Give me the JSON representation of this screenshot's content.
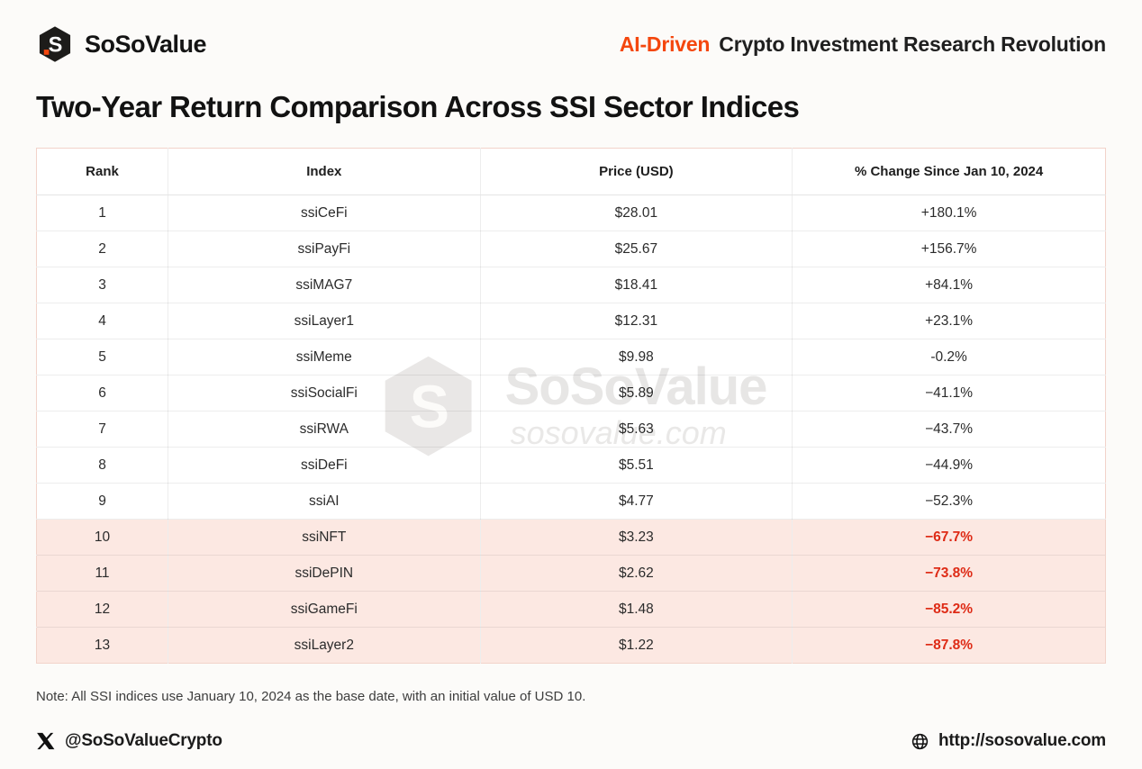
{
  "brand": {
    "name": "SoSoValue",
    "tagline_accent": "AI-Driven",
    "tagline_rest": "Crypto Investment Research Revolution"
  },
  "page_title": "Two-Year Return Comparison Across SSI Sector Indices",
  "table": {
    "columns": [
      "Rank",
      "Index",
      "Price (USD)",
      "% Change Since Jan 10, 2024"
    ],
    "rows": [
      {
        "rank": "1",
        "index": "ssiCeFi",
        "price": "$28.01",
        "change": "+180.1%",
        "highlight": false
      },
      {
        "rank": "2",
        "index": "ssiPayFi",
        "price": "$25.67",
        "change": "+156.7%",
        "highlight": false
      },
      {
        "rank": "3",
        "index": "ssiMAG7",
        "price": "$18.41",
        "change": "+84.1%",
        "highlight": false
      },
      {
        "rank": "4",
        "index": "ssiLayer1",
        "price": "$12.31",
        "change": "+23.1%",
        "highlight": false
      },
      {
        "rank": "5",
        "index": "ssiMeme",
        "price": "$9.98",
        "change": "-0.2%",
        "highlight": false
      },
      {
        "rank": "6",
        "index": "ssiSocialFi",
        "price": "$5.89",
        "change": "−41.1%",
        "highlight": false
      },
      {
        "rank": "7",
        "index": "ssiRWA",
        "price": "$5.63",
        "change": "−43.7%",
        "highlight": false
      },
      {
        "rank": "8",
        "index": "ssiDeFi",
        "price": "$5.51",
        "change": "−44.9%",
        "highlight": false
      },
      {
        "rank": "9",
        "index": "ssiAI",
        "price": "$4.77",
        "change": "−52.3%",
        "highlight": false
      },
      {
        "rank": "10",
        "index": "ssiNFT",
        "price": "$3.23",
        "change": "−67.7%",
        "highlight": true
      },
      {
        "rank": "11",
        "index": "ssiDePIN",
        "price": "$2.62",
        "change": "−73.8%",
        "highlight": true
      },
      {
        "rank": "12",
        "index": "ssiGameFi",
        "price": "$1.48",
        "change": "−85.2%",
        "highlight": true
      },
      {
        "rank": "13",
        "index": "ssiLayer2",
        "price": "$1.22",
        "change": "−87.8%",
        "highlight": true
      }
    ]
  },
  "watermark": {
    "name": "SoSoValue",
    "domain": "sosovalue.com"
  },
  "note": "Note: All SSI indices use January 10, 2024 as the base date, with an initial value of USD 10.",
  "footer": {
    "twitter": "@SoSoValueCrypto",
    "website": "http://sosovalue.com"
  },
  "colors": {
    "accent": "#f4470e",
    "negative_text": "#de2b16",
    "highlight_bg": "#fce8e2"
  },
  "chart_data": {
    "type": "table",
    "title": "Two-Year Return Comparison Across SSI Sector Indices",
    "columns": [
      "Rank",
      "Index",
      "Price (USD)",
      "% Change Since Jan 10, 2024"
    ],
    "rows": [
      [
        1,
        "ssiCeFi",
        28.01,
        180.1
      ],
      [
        2,
        "ssiPayFi",
        25.67,
        156.7
      ],
      [
        3,
        "ssiMAG7",
        18.41,
        84.1
      ],
      [
        4,
        "ssiLayer1",
        12.31,
        23.1
      ],
      [
        5,
        "ssiMeme",
        9.98,
        -0.2
      ],
      [
        6,
        "ssiSocialFi",
        5.89,
        -41.1
      ],
      [
        7,
        "ssiRWA",
        5.63,
        -43.7
      ],
      [
        8,
        "ssiDeFi",
        5.51,
        -44.9
      ],
      [
        9,
        "ssiAI",
        4.77,
        -52.3
      ],
      [
        10,
        "ssiNFT",
        3.23,
        -67.7
      ],
      [
        11,
        "ssiDePIN",
        2.62,
        -73.8
      ],
      [
        12,
        "ssiGameFi",
        1.48,
        -85.2
      ],
      [
        13,
        "ssiLayer2",
        1.22,
        -87.8
      ]
    ],
    "units": {
      "price": "USD",
      "change": "%"
    },
    "base_date": "January 10, 2024",
    "initial_value": 10,
    "highlighted_ranks": [
      10,
      11,
      12,
      13
    ]
  }
}
